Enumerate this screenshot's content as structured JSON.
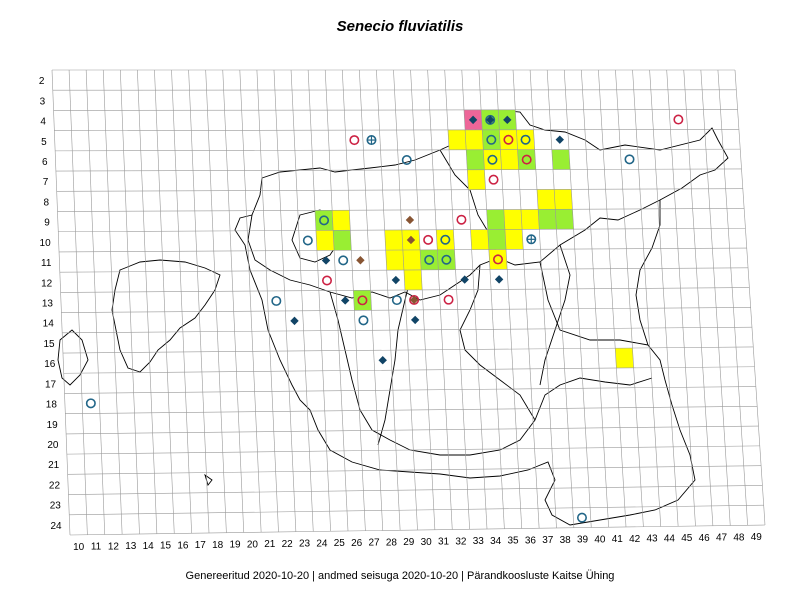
{
  "title": "Senecio fluviatilis",
  "footer": "Genereeritud 2020-10-20  |  andmed seisuga 2020-10-20  |  Pärandkoosluste Kaitse Ühing",
  "grid": {
    "row_labels": [
      "2",
      "3",
      "4",
      "5",
      "6",
      "7",
      "8",
      "9",
      "10",
      "11",
      "12",
      "13",
      "14",
      "15",
      "16",
      "17",
      "18",
      "19",
      "20",
      "21",
      "22",
      "23",
      "24"
    ],
    "col_labels": [
      "10",
      "11",
      "12",
      "13",
      "14",
      "15",
      "16",
      "17",
      "18",
      "19",
      "20",
      "21",
      "22",
      "23",
      "24",
      "25",
      "26",
      "27",
      "28",
      "29",
      "30",
      "31",
      "32",
      "33",
      "34",
      "35",
      "36",
      "37",
      "38",
      "39",
      "40",
      "41",
      "42",
      "43",
      "44",
      "45",
      "46",
      "47",
      "48",
      "49"
    ]
  },
  "colors": {
    "yellow": "#ffff00",
    "green": "#99ee33",
    "pink": "#ee6699",
    "red_circle": "#cc2244",
    "blue_circle": "#226688",
    "blue_diamond": "#114466",
    "brown_diamond": "#885533"
  },
  "cells": [
    {
      "col": 34,
      "row": 4,
      "fill": "pink"
    },
    {
      "col": 35,
      "row": 4,
      "fill": "green"
    },
    {
      "col": 36,
      "row": 4,
      "fill": "green"
    },
    {
      "col": 33,
      "row": 5,
      "fill": "yellow"
    },
    {
      "col": 34,
      "row": 5,
      "fill": "yellow"
    },
    {
      "col": 35,
      "row": 5,
      "fill": "green"
    },
    {
      "col": 36,
      "row": 5,
      "fill": "yellow"
    },
    {
      "col": 37,
      "row": 5,
      "fill": "yellow"
    },
    {
      "col": 34,
      "row": 6,
      "fill": "green"
    },
    {
      "col": 35,
      "row": 6,
      "fill": "yellow"
    },
    {
      "col": 36,
      "row": 6,
      "fill": "yellow"
    },
    {
      "col": 37,
      "row": 6,
      "fill": "green"
    },
    {
      "col": 39,
      "row": 6,
      "fill": "green"
    },
    {
      "col": 34,
      "row": 7,
      "fill": "yellow"
    },
    {
      "col": 38,
      "row": 8,
      "fill": "yellow"
    },
    {
      "col": 39,
      "row": 8,
      "fill": "yellow"
    },
    {
      "col": 25,
      "row": 9,
      "fill": "green"
    },
    {
      "col": 26,
      "row": 9,
      "fill": "yellow"
    },
    {
      "col": 35,
      "row": 9,
      "fill": "green"
    },
    {
      "col": 36,
      "row": 9,
      "fill": "yellow"
    },
    {
      "col": 37,
      "row": 9,
      "fill": "yellow"
    },
    {
      "col": 38,
      "row": 9,
      "fill": "green"
    },
    {
      "col": 39,
      "row": 9,
      "fill": "green"
    },
    {
      "col": 25,
      "row": 10,
      "fill": "yellow"
    },
    {
      "col": 26,
      "row": 10,
      "fill": "green"
    },
    {
      "col": 29,
      "row": 10,
      "fill": "yellow"
    },
    {
      "col": 30,
      "row": 10,
      "fill": "yellow"
    },
    {
      "col": 32,
      "row": 10,
      "fill": "yellow"
    },
    {
      "col": 34,
      "row": 10,
      "fill": "yellow"
    },
    {
      "col": 35,
      "row": 10,
      "fill": "green"
    },
    {
      "col": 36,
      "row": 10,
      "fill": "yellow"
    },
    {
      "col": 29,
      "row": 11,
      "fill": "yellow"
    },
    {
      "col": 30,
      "row": 11,
      "fill": "yellow"
    },
    {
      "col": 31,
      "row": 11,
      "fill": "green"
    },
    {
      "col": 32,
      "row": 11,
      "fill": "green"
    },
    {
      "col": 35,
      "row": 11,
      "fill": "yellow"
    },
    {
      "col": 30,
      "row": 12,
      "fill": "yellow"
    },
    {
      "col": 27,
      "row": 13,
      "fill": "green"
    },
    {
      "col": 42,
      "row": 16,
      "fill": "yellow"
    }
  ],
  "markers": [
    {
      "col": 34,
      "row": 4,
      "type": "blue_diamond"
    },
    {
      "col": 35,
      "row": 4,
      "type": "blue_circle"
    },
    {
      "col": 35,
      "row": 4,
      "type": "blue_diamond"
    },
    {
      "col": 36,
      "row": 4,
      "type": "blue_diamond"
    },
    {
      "col": 35,
      "row": 5,
      "type": "blue_circle"
    },
    {
      "col": 36,
      "row": 5,
      "type": "red_circle"
    },
    {
      "col": 37,
      "row": 5,
      "type": "blue_circle"
    },
    {
      "col": 39,
      "row": 5,
      "type": "blue_diamond"
    },
    {
      "col": 46,
      "row": 4,
      "type": "red_circle"
    },
    {
      "col": 27,
      "row": 5,
      "type": "red_circle"
    },
    {
      "col": 28,
      "row": 5,
      "type": "blue_crosscircle"
    },
    {
      "col": 35,
      "row": 6,
      "type": "blue_circle"
    },
    {
      "col": 37,
      "row": 6,
      "type": "red_circle"
    },
    {
      "col": 30,
      "row": 6,
      "type": "blue_circle"
    },
    {
      "col": 43,
      "row": 6,
      "type": "blue_circle"
    },
    {
      "col": 35,
      "row": 7,
      "type": "red_circle"
    },
    {
      "col": 25,
      "row": 9,
      "type": "blue_circle"
    },
    {
      "col": 30,
      "row": 9,
      "type": "brown_diamond"
    },
    {
      "col": 33,
      "row": 9,
      "type": "red_circle"
    },
    {
      "col": 24,
      "row": 10,
      "type": "blue_circle"
    },
    {
      "col": 31,
      "row": 10,
      "type": "red_circle"
    },
    {
      "col": 30,
      "row": 10,
      "type": "brown_diamond"
    },
    {
      "col": 32,
      "row": 10,
      "type": "blue_circle"
    },
    {
      "col": 37,
      "row": 10,
      "type": "blue_crosscircle"
    },
    {
      "col": 25,
      "row": 11,
      "type": "blue_diamond"
    },
    {
      "col": 26,
      "row": 11,
      "type": "blue_circle"
    },
    {
      "col": 27,
      "row": 11,
      "type": "brown_diamond"
    },
    {
      "col": 31,
      "row": 11,
      "type": "blue_circle"
    },
    {
      "col": 32,
      "row": 11,
      "type": "blue_circle"
    },
    {
      "col": 35,
      "row": 11,
      "type": "red_circle"
    },
    {
      "col": 25,
      "row": 12,
      "type": "red_circle"
    },
    {
      "col": 29,
      "row": 12,
      "type": "blue_diamond"
    },
    {
      "col": 33,
      "row": 12,
      "type": "blue_diamond"
    },
    {
      "col": 35,
      "row": 12,
      "type": "blue_diamond"
    },
    {
      "col": 22,
      "row": 13,
      "type": "blue_circle"
    },
    {
      "col": 26,
      "row": 13,
      "type": "blue_diamond"
    },
    {
      "col": 27,
      "row": 13,
      "type": "red_circle"
    },
    {
      "col": 29,
      "row": 13,
      "type": "blue_circle"
    },
    {
      "col": 30,
      "row": 13,
      "type": "red_circle"
    },
    {
      "col": 30,
      "row": 13,
      "type": "brown_diamond"
    },
    {
      "col": 32,
      "row": 13,
      "type": "red_circle"
    },
    {
      "col": 23,
      "row": 14,
      "type": "blue_diamond"
    },
    {
      "col": 27,
      "row": 14,
      "type": "blue_circle"
    },
    {
      "col": 30,
      "row": 14,
      "type": "blue_diamond"
    },
    {
      "col": 28,
      "row": 16,
      "type": "blue_diamond"
    },
    {
      "col": 11,
      "row": 18,
      "type": "blue_circle"
    },
    {
      "col": 39,
      "row": 24,
      "type": "blue_circle"
    }
  ]
}
